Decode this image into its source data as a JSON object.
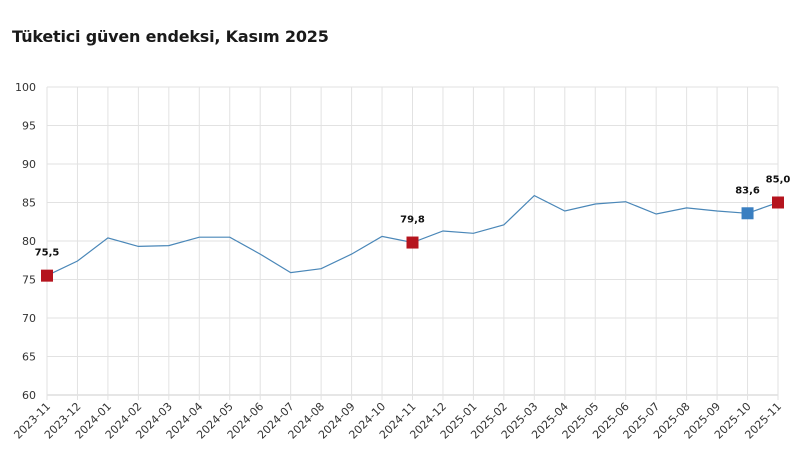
{
  "title": "Tüketici güven endeksi, Kasım 2025",
  "colors": {
    "line": "#4a87b8",
    "highlight_red": "#b5141e",
    "highlight_blue": "#3a7fc1",
    "grid": "#e2e2e2",
    "axis": "#cccccc"
  },
  "chart_data": {
    "type": "line",
    "title": "Tüketici güven endeksi, Kasım 2025",
    "xlabel": "",
    "ylabel": "",
    "ylim": [
      60,
      100
    ],
    "yticks": [
      60,
      65,
      70,
      75,
      80,
      85,
      90,
      95,
      100
    ],
    "grid": true,
    "legend": null,
    "categories": [
      "2023-11",
      "2023-12",
      "2024-01",
      "2024-02",
      "2024-03",
      "2024-04",
      "2024-05",
      "2024-06",
      "2024-07",
      "2024-08",
      "2024-09",
      "2024-10",
      "2024-11",
      "2024-12",
      "2025-01",
      "2025-02",
      "2025-03",
      "2025-04",
      "2025-05",
      "2025-06",
      "2025-07",
      "2025-08",
      "2025-09",
      "2025-10",
      "2025-11"
    ],
    "series": [
      {
        "name": "Tüketici güven endeksi",
        "values": [
          75.5,
          77.4,
          80.4,
          79.3,
          79.4,
          80.5,
          80.5,
          78.3,
          75.9,
          76.4,
          78.3,
          80.6,
          79.8,
          81.3,
          81.0,
          82.1,
          85.9,
          83.9,
          84.8,
          85.1,
          83.5,
          84.3,
          83.9,
          83.6,
          85.0
        ]
      }
    ],
    "annotations": [
      {
        "index": 0,
        "label": "75,5",
        "color": "red"
      },
      {
        "index": 12,
        "label": "79,8",
        "color": "red"
      },
      {
        "index": 23,
        "label": "83,6",
        "color": "blue"
      },
      {
        "index": 24,
        "label": "85,0",
        "color": "red"
      }
    ]
  }
}
